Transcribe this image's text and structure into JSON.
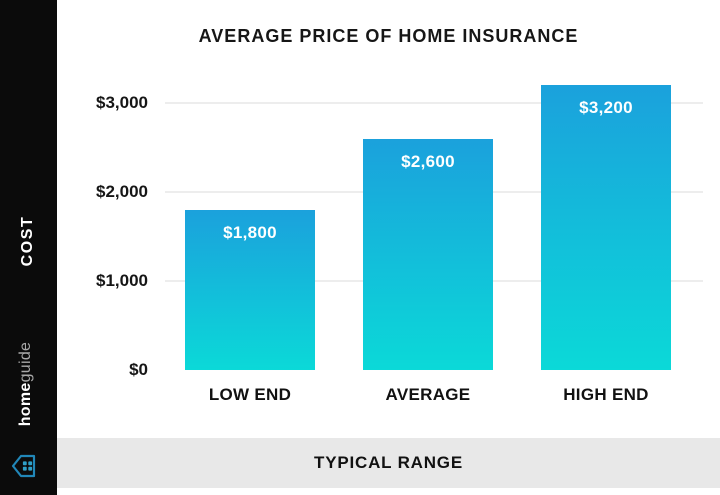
{
  "sidebar": {
    "cost_label": "COST",
    "brand_bold": "home",
    "brand_light": "guide"
  },
  "chart_data": {
    "type": "bar",
    "title": "AVERAGE PRICE OF HOME INSURANCE",
    "categories": [
      "LOW END",
      "AVERAGE",
      "HIGH END"
    ],
    "values": [
      1800,
      2600,
      3200
    ],
    "value_labels": [
      "$1,800",
      "$2,600",
      "$3,200"
    ],
    "y_tick_labels": [
      "$3,000",
      "$2,000",
      "$1,000",
      "$0"
    ],
    "y_tick_values": [
      3000,
      2000,
      1000,
      0
    ],
    "ylabel": "COST",
    "xlabel": "TYPICAL RANGE",
    "ylim": [
      0,
      3400
    ],
    "grid": "horizontal",
    "legend": "none"
  },
  "footer": {
    "label": "TYPICAL RANGE"
  },
  "colors": {
    "sidebar_bg": "#0b0b0b",
    "footer_bg": "#e8e8e8",
    "gridline": "#ededed",
    "bar_gradient_top": "#1ba1dc",
    "bar_gradient_bottom": "#0bd9d8",
    "value_text": "#ffffff",
    "logo_outline": "#2187b8",
    "logo_squares": "#2fa0c8"
  }
}
